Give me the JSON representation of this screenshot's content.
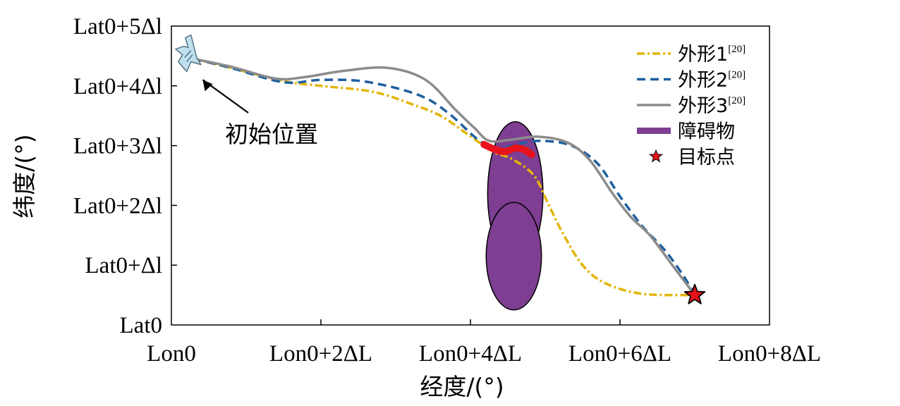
{
  "chart_data": {
    "type": "line",
    "title": "",
    "xlabel": "经度/(°)",
    "ylabel": "纬度/(°)",
    "xlim": [
      0,
      8
    ],
    "ylim": [
      0,
      5
    ],
    "x_ticks": [
      {
        "value": 0,
        "label": "Lon0"
      },
      {
        "value": 2,
        "label": "Lon0+2ΔL"
      },
      {
        "value": 4,
        "label": "Lon0+4ΔL"
      },
      {
        "value": 6,
        "label": "Lon0+6ΔL"
      },
      {
        "value": 8,
        "label": "Lon0+8ΔL"
      }
    ],
    "y_ticks": [
      {
        "value": 0,
        "label": "Lat0"
      },
      {
        "value": 1,
        "label": "Lat0+Δl"
      },
      {
        "value": 2,
        "label": "Lat0+2Δl"
      },
      {
        "value": 3,
        "label": "Lat0+3Δl"
      },
      {
        "value": 4,
        "label": "Lat0+4Δl"
      },
      {
        "value": 5,
        "label": "Lat0+5Δl"
      }
    ],
    "legend_position": "top-right",
    "series": [
      {
        "name": "外形1",
        "ref": "[20]",
        "color": "#E3B505",
        "style": "dash-dot",
        "points": [
          [
            0.3,
            4.45
          ],
          [
            0.8,
            4.3
          ],
          [
            1.5,
            4.08
          ],
          [
            2.0,
            4.0
          ],
          [
            2.7,
            3.9
          ],
          [
            3.2,
            3.7
          ],
          [
            3.6,
            3.5
          ],
          [
            3.95,
            3.2
          ],
          [
            4.3,
            2.9
          ],
          [
            4.55,
            2.78
          ],
          [
            4.85,
            2.5
          ],
          [
            5.05,
            2.0
          ],
          [
            5.25,
            1.5
          ],
          [
            5.5,
            1.0
          ],
          [
            5.8,
            0.7
          ],
          [
            6.3,
            0.52
          ],
          [
            7.0,
            0.5
          ]
        ]
      },
      {
        "name": "外形2",
        "ref": "[20]",
        "color": "#1E5FA0",
        "style": "dashed",
        "points": [
          [
            0.3,
            4.45
          ],
          [
            0.8,
            4.3
          ],
          [
            1.5,
            4.06
          ],
          [
            2.0,
            4.1
          ],
          [
            2.6,
            4.07
          ],
          [
            3.3,
            3.85
          ],
          [
            3.7,
            3.55
          ],
          [
            4.1,
            3.1
          ],
          [
            4.35,
            2.95
          ],
          [
            4.6,
            3.02
          ],
          [
            4.95,
            3.08
          ],
          [
            5.35,
            3.0
          ],
          [
            5.7,
            2.7
          ],
          [
            6.0,
            2.15
          ],
          [
            6.3,
            1.65
          ],
          [
            6.6,
            1.25
          ],
          [
            6.85,
            0.82
          ],
          [
            7.0,
            0.5
          ]
        ]
      },
      {
        "name": "外形3",
        "ref": "[20]",
        "color": "#8C8C8C",
        "style": "solid",
        "points": [
          [
            0.3,
            4.45
          ],
          [
            0.8,
            4.32
          ],
          [
            1.4,
            4.12
          ],
          [
            1.8,
            4.15
          ],
          [
            2.3,
            4.25
          ],
          [
            2.9,
            4.3
          ],
          [
            3.4,
            4.1
          ],
          [
            3.8,
            3.6
          ],
          [
            4.05,
            3.3
          ],
          [
            4.25,
            3.08
          ],
          [
            4.55,
            3.1
          ],
          [
            4.9,
            3.15
          ],
          [
            5.3,
            3.05
          ],
          [
            5.6,
            2.75
          ],
          [
            5.9,
            2.2
          ],
          [
            6.15,
            1.8
          ],
          [
            6.4,
            1.5
          ],
          [
            6.7,
            1.0
          ],
          [
            7.0,
            0.5
          ]
        ]
      }
    ],
    "obstacles": {
      "name": "障碍物",
      "color": "#7E3E91",
      "ellipses": [
        {
          "cx": 4.6,
          "cy": 2.2,
          "rx": 0.37,
          "ry": 1.2
        },
        {
          "cx": 4.58,
          "cy": 1.15,
          "rx": 0.37,
          "ry": 0.9
        }
      ]
    },
    "impact_segment": {
      "color": "#E8121C",
      "points": [
        [
          4.18,
          3.02
        ],
        [
          4.3,
          2.95
        ],
        [
          4.45,
          2.9
        ],
        [
          4.6,
          2.96
        ],
        [
          4.72,
          2.93
        ],
        [
          4.82,
          2.85
        ]
      ]
    },
    "start": {
      "x": 0.3,
      "y": 4.45,
      "label": "初始位置",
      "icon": "aircraft-icon"
    },
    "target": {
      "x": 7.0,
      "y": 0.5,
      "name": "目标点",
      "color": "#E8121C"
    }
  }
}
